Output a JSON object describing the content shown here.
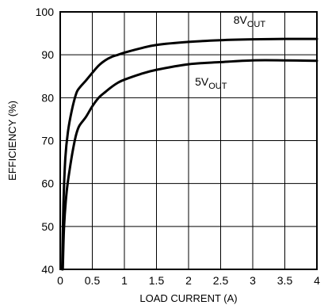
{
  "chart_data": {
    "type": "line",
    "xlabel": "LOAD CURRENT (A)",
    "ylabel": "EFFICIENCY (%)",
    "xlim": [
      0,
      4
    ],
    "ylim": [
      40,
      100
    ],
    "x_ticks": [
      "0",
      "0.5",
      "1",
      "1.5",
      "2",
      "2.5",
      "3",
      "3.5",
      "4"
    ],
    "y_ticks": [
      "40",
      "50",
      "60",
      "70",
      "80",
      "90",
      "100"
    ],
    "grid": true,
    "series": [
      {
        "label_main": "8V",
        "label_sub": "OUT",
        "x": [
          0.03,
          0.05,
          0.08,
          0.12,
          0.18,
          0.25,
          0.3,
          0.4,
          0.5,
          0.6,
          0.7,
          0.8,
          0.9,
          1.0,
          1.25,
          1.5,
          2.0,
          2.5,
          3.0,
          3.5,
          4.0
        ],
        "y": [
          40,
          55,
          66,
          72,
          77,
          81,
          82.3,
          84,
          85.8,
          87.5,
          88.7,
          89.5,
          90,
          90.5,
          91.5,
          92.3,
          93,
          93.4,
          93.6,
          93.7,
          93.7
        ]
      },
      {
        "label_main": "5V",
        "label_sub": "OUT",
        "x": [
          0.04,
          0.06,
          0.1,
          0.15,
          0.2,
          0.25,
          0.3,
          0.4,
          0.5,
          0.6,
          0.7,
          0.8,
          0.9,
          1.0,
          1.25,
          1.5,
          2.0,
          2.5,
          3.0,
          3.5,
          4.0
        ],
        "y": [
          40,
          50,
          58,
          63.5,
          68,
          71.5,
          73.5,
          75.5,
          78,
          80,
          81.3,
          82.5,
          83.5,
          84.2,
          85.5,
          86.5,
          87.8,
          88.3,
          88.7,
          88.7,
          88.6
        ]
      }
    ]
  }
}
